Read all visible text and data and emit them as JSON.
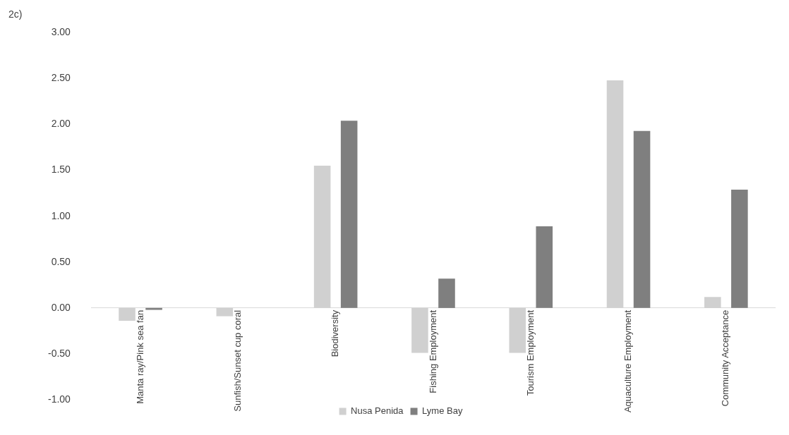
{
  "chart_data": {
    "type": "bar",
    "annotations": [
      "2c)"
    ],
    "categories": [
      "Manta ray/Pink sea fan",
      "Sunfish/Sunset cup coral",
      "Biodiversity",
      "Fishing Employment",
      "Tourism Employment",
      "Aquaculture Employment",
      "Community Acceptance"
    ],
    "series": [
      {
        "name": "Nusa Penida",
        "color": "#d0d0d0",
        "values": [
          -0.14,
          -0.09,
          1.55,
          -0.49,
          -0.49,
          2.48,
          0.12
        ]
      },
      {
        "name": "Lyme Bay",
        "color": "#7f7f7f",
        "values": [
          -0.02,
          0,
          2.04,
          0.32,
          0.89,
          1.93,
          1.29
        ]
      }
    ],
    "ylim": [
      -1,
      3
    ],
    "yticks": [
      {
        "value": -1,
        "label": "-1.00"
      },
      {
        "value": -0.5,
        "label": "-0.50"
      },
      {
        "value": 0,
        "label": "0.00"
      },
      {
        "value": 0.5,
        "label": "0.50"
      },
      {
        "value": 1,
        "label": "1.00"
      },
      {
        "value": 1.5,
        "label": "1.50"
      },
      {
        "value": 2,
        "label": "2.00"
      },
      {
        "value": 2.5,
        "label": "2.50"
      },
      {
        "value": 3,
        "label": "3.00"
      }
    ],
    "grid": false,
    "legend": "bottom"
  }
}
